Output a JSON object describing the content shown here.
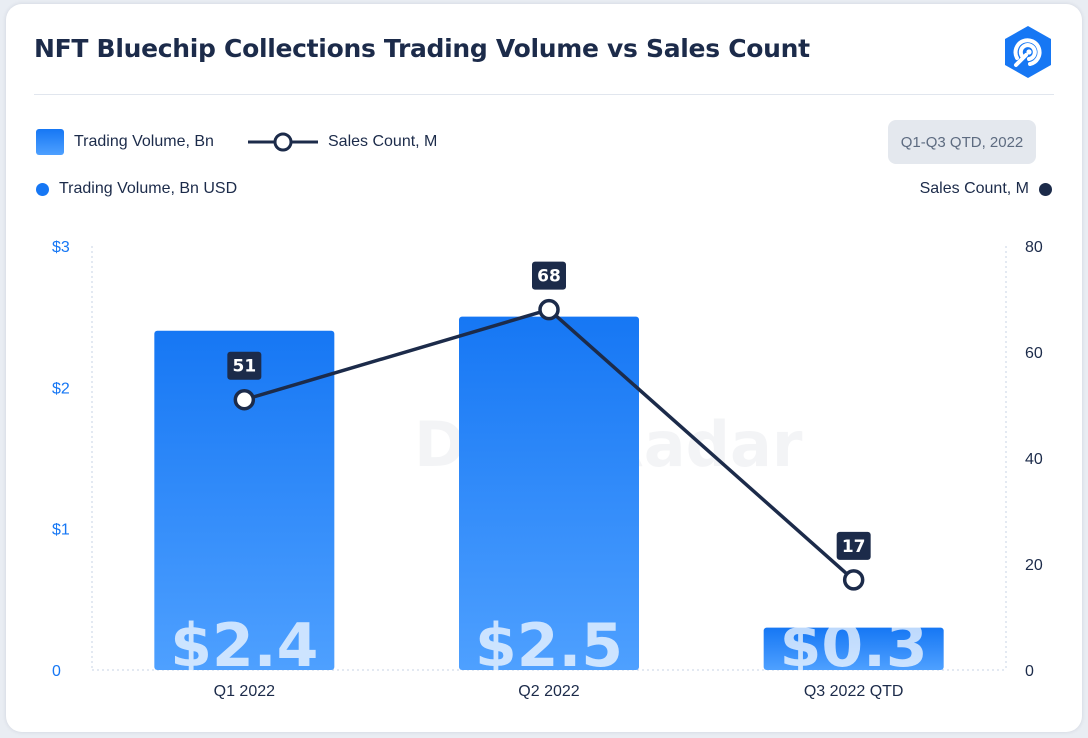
{
  "title": "NFT Bluechip Collections Trading Volume vs Sales Count",
  "legend": {
    "bar_label": "Trading Volume, Bn",
    "line_label": "Sales Count, M",
    "period": "Q1-Q3 QTD, 2022"
  },
  "axes_titles": {
    "left": "Trading Volume, Bn USD",
    "right": "Sales Count, M"
  },
  "watermark": "DappRadar",
  "colors": {
    "bar_top": "#1677f4",
    "bar_bottom": "#4ea0ff",
    "line": "#1c2b4a",
    "left_axis": "#1677f4",
    "right_axis": "#1c2b4a"
  },
  "chart_data": {
    "type": "bar+line",
    "categories": [
      "Q1 2022",
      "Q2 2022",
      "Q3 2022 QTD"
    ],
    "series": [
      {
        "name": "Trading Volume, Bn",
        "axis": "left",
        "type": "bar",
        "values": [
          2.4,
          2.5,
          0.3
        ],
        "labels": [
          "$2.4",
          "$2.5",
          "$0.3"
        ]
      },
      {
        "name": "Sales Count, M",
        "axis": "right",
        "type": "line",
        "values": [
          51,
          68,
          17
        ],
        "labels": [
          "51",
          "68",
          "17"
        ]
      }
    ],
    "y_left": {
      "range": [
        0,
        3
      ],
      "ticks": [
        0,
        1,
        2,
        3
      ],
      "tick_labels": [
        "0",
        "$1",
        "$2",
        "$3"
      ],
      "label": "Trading Volume, Bn USD"
    },
    "y_right": {
      "range": [
        0,
        80
      ],
      "ticks": [
        0,
        20,
        40,
        60,
        80
      ],
      "tick_labels": [
        "0",
        "20",
        "40",
        "60",
        "80"
      ],
      "label": "Sales Count, M"
    },
    "grid": false,
    "legend_position": "top-left"
  }
}
